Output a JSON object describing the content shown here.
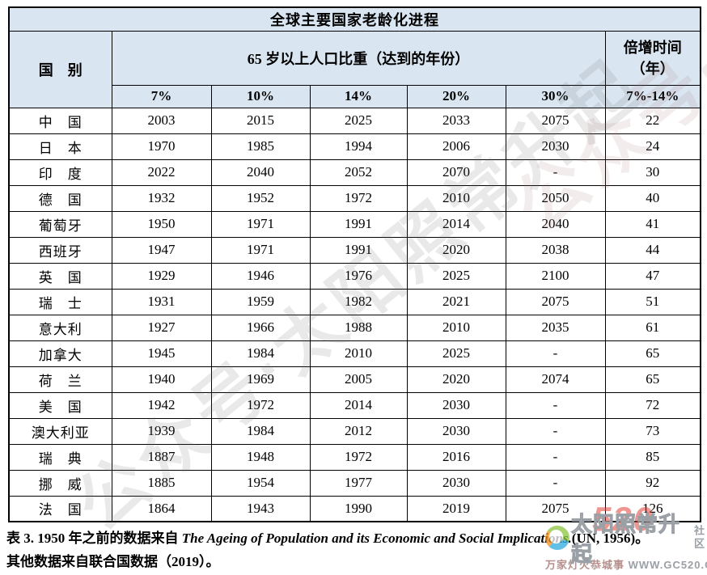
{
  "table": {
    "title": "全球主要国家老龄化进程",
    "header": {
      "country": "国　别",
      "share_group": "65 岁以上人口比重（达到的年份）",
      "doubling": "倍增时间\n（年）",
      "percent_cols": [
        "7%",
        "10%",
        "14%",
        "20%",
        "30%"
      ],
      "doubling_col": "7%-14%"
    },
    "rows": [
      {
        "country": "中　国",
        "cells": [
          "2003",
          "2015",
          "2025",
          "2033",
          "2075",
          "22"
        ]
      },
      {
        "country": "日　本",
        "cells": [
          "1970",
          "1985",
          "1994",
          "2006",
          "2030",
          "24"
        ]
      },
      {
        "country": "印　度",
        "cells": [
          "2022",
          "2040",
          "2052",
          "2070",
          "-",
          "30"
        ]
      },
      {
        "country": "德　国",
        "cells": [
          "1932",
          "1952",
          "1972",
          "2010",
          "2050",
          "40"
        ]
      },
      {
        "country": "葡萄牙",
        "cells": [
          "1950",
          "1971",
          "1991",
          "2014",
          "2040",
          "41"
        ]
      },
      {
        "country": "西班牙",
        "cells": [
          "1947",
          "1971",
          "1991",
          "2020",
          "2038",
          "44"
        ]
      },
      {
        "country": "英　国",
        "cells": [
          "1929",
          "1946",
          "1976",
          "2025",
          "2100",
          "47"
        ]
      },
      {
        "country": "瑞　士",
        "cells": [
          "1931",
          "1959",
          "1982",
          "2021",
          "2075",
          "51"
        ]
      },
      {
        "country": "意大利",
        "cells": [
          "1927",
          "1966",
          "1988",
          "2010",
          "2035",
          "61"
        ]
      },
      {
        "country": "加拿大",
        "cells": [
          "1945",
          "1984",
          "2010",
          "2025",
          "-",
          "65"
        ]
      },
      {
        "country": "荷　兰",
        "cells": [
          "1940",
          "1969",
          "2005",
          "2020",
          "2074",
          "65"
        ]
      },
      {
        "country": "美　国",
        "cells": [
          "1942",
          "1972",
          "2014",
          "2030",
          "-",
          "72"
        ]
      },
      {
        "country": "澳大利亚",
        "cells": [
          "1939",
          "1984",
          "2012",
          "2030",
          "-",
          "73"
        ]
      },
      {
        "country": "瑞　典",
        "cells": [
          "1887",
          "1948",
          "1972",
          "2016",
          "-",
          "85"
        ]
      },
      {
        "country": "挪　威",
        "cells": [
          "1885",
          "1954",
          "1977",
          "2030",
          "-",
          "92"
        ]
      },
      {
        "country": "法　国",
        "cells": [
          "1864",
          "1943",
          "1990",
          "2019",
          "2075",
          "126"
        ]
      }
    ]
  },
  "note": {
    "prefix": "表 3. 1950 年之前的数据来自 ",
    "source_italic": "The Ageing of Population and its Economic and Social Implications.",
    "citation": "(UN, 1956)",
    "suffix": "。其他数据来自联合国数据（2019）。"
  },
  "watermark": {
    "diagonal_text": "公众号·太阳照常升起",
    "badge": {
      "title": "太阳照常升起",
      "number": "520",
      "community": "社区",
      "tagline_left": "万家灯火恭城事",
      "tagline_right": " WWW.GC520.CN"
    }
  }
}
